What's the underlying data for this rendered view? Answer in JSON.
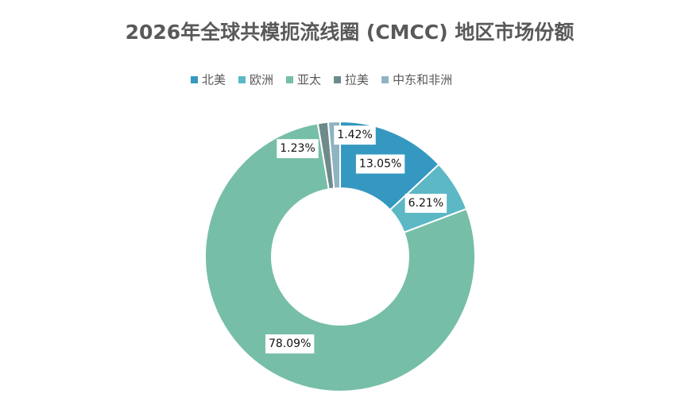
{
  "chart_data": {
    "type": "donut",
    "title": "2026年全球共模扼流线圈 (CMCC) 地区市场份额",
    "categories": [
      "北美",
      "欧洲",
      "亚太",
      "拉美",
      "中东和非洲"
    ],
    "values": [
      13.05,
      6.21,
      78.09,
      1.23,
      1.42
    ],
    "value_labels": [
      "13.05%",
      "6.21%",
      "78.09%",
      "1.23%",
      "1.42%"
    ],
    "colors": [
      "#3598c0",
      "#5bb8c4",
      "#76bea8",
      "#6f8a8a",
      "#8fb3c2"
    ],
    "legend": "top"
  }
}
